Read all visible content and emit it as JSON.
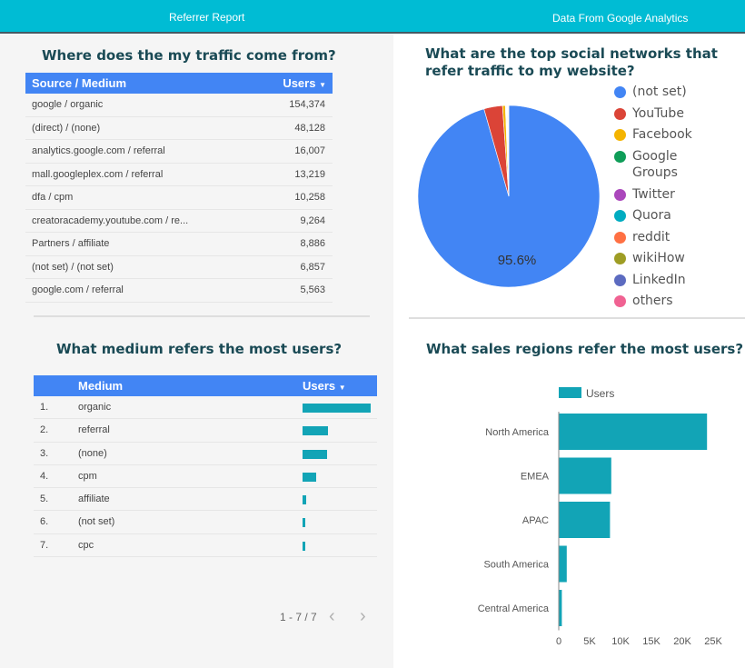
{
  "header": {
    "title_left": "Referrer Report",
    "title_right": "Data From Google Analytics"
  },
  "panels": {
    "traffic": {
      "title": "Where does the my traffic come from?"
    },
    "social": {
      "title": "What are the top social networks that refer traffic to my website?"
    },
    "medium": {
      "title": "What medium refers the most users?"
    },
    "regions": {
      "title": "What sales regions refer the most users?"
    }
  },
  "source_table": {
    "col_source": "Source / Medium",
    "col_users": "Users",
    "sort_icon": "caret-down-icon",
    "rows": [
      {
        "source": "google / organic",
        "users": "154,374"
      },
      {
        "source": "(direct) / (none)",
        "users": "48,128"
      },
      {
        "source": "analytics.google.com / referral",
        "users": "16,007"
      },
      {
        "source": "mall.googleplex.com / referral",
        "users": "13,219"
      },
      {
        "source": "dfa / cpm",
        "users": "10,258"
      },
      {
        "source": "creatoracademy.youtube.com / re...",
        "users": "9,264"
      },
      {
        "source": "Partners / affiliate",
        "users": "8,886"
      },
      {
        "source": "(not set) / (not set)",
        "users": "6,857"
      },
      {
        "source": "google.com / referral",
        "users": "5,563"
      }
    ]
  },
  "medium_table": {
    "col_medium": "Medium",
    "col_users": "Users",
    "sort_icon": "caret-down-icon",
    "bar_color": "#12a4b6",
    "rows": [
      {
        "rank": "1.",
        "medium": "organic",
        "users_fraction": 1.0
      },
      {
        "rank": "2.",
        "medium": "referral",
        "users_fraction": 0.37
      },
      {
        "rank": "3.",
        "medium": "(none)",
        "users_fraction": 0.36
      },
      {
        "rank": "4.",
        "medium": "cpm",
        "users_fraction": 0.2
      },
      {
        "rank": "5.",
        "medium": "affiliate",
        "users_fraction": 0.05
      },
      {
        "rank": "6.",
        "medium": "(not set)",
        "users_fraction": 0.04
      },
      {
        "rank": "7.",
        "medium": "cpc",
        "users_fraction": 0.03
      }
    ],
    "pager": {
      "label": "1 - 7 / 7",
      "prev_icon": "chevron-left-icon",
      "next_icon": "chevron-right-icon"
    }
  },
  "chart_data": [
    {
      "type": "pie",
      "title": "What are the top social networks that refer traffic to my website?",
      "slices": [
        {
          "label": "(not set)",
          "value": 95.6,
          "color": "#4285f4"
        },
        {
          "label": "YouTube",
          "value": 3.3,
          "color": "#db4437"
        },
        {
          "label": "Facebook",
          "value": 0.5,
          "color": "#f4b400"
        },
        {
          "label": "Google Groups",
          "value": 0.1,
          "color": "#0f9d58"
        },
        {
          "label": "Twitter",
          "value": 0.1,
          "color": "#ab47bc"
        },
        {
          "label": "Quora",
          "value": 0.1,
          "color": "#00acc1"
        },
        {
          "label": "reddit",
          "value": 0.1,
          "color": "#ff7043"
        },
        {
          "label": "wikiHow",
          "value": 0.1,
          "color": "#9e9d24"
        },
        {
          "label": "LinkedIn",
          "value": 0.05,
          "color": "#5c6bc0"
        },
        {
          "label": "others",
          "value": 0.05,
          "color": "#f06292"
        }
      ],
      "data_label": "95.6%",
      "legend": "right"
    },
    {
      "type": "bar",
      "orientation": "horizontal",
      "title": "What sales regions refer the most users?",
      "categories": [
        "North America",
        "EMEA",
        "APAC",
        "South America",
        "Central America"
      ],
      "series": [
        {
          "name": "Users",
          "values": [
            24000,
            8500,
            8300,
            1300,
            500
          ],
          "color": "#12a4b6"
        }
      ],
      "xlim": [
        0,
        25000
      ],
      "xticks": [
        "0",
        "5K",
        "10K",
        "15K",
        "20K",
        "25K"
      ],
      "legend": "top"
    }
  ]
}
